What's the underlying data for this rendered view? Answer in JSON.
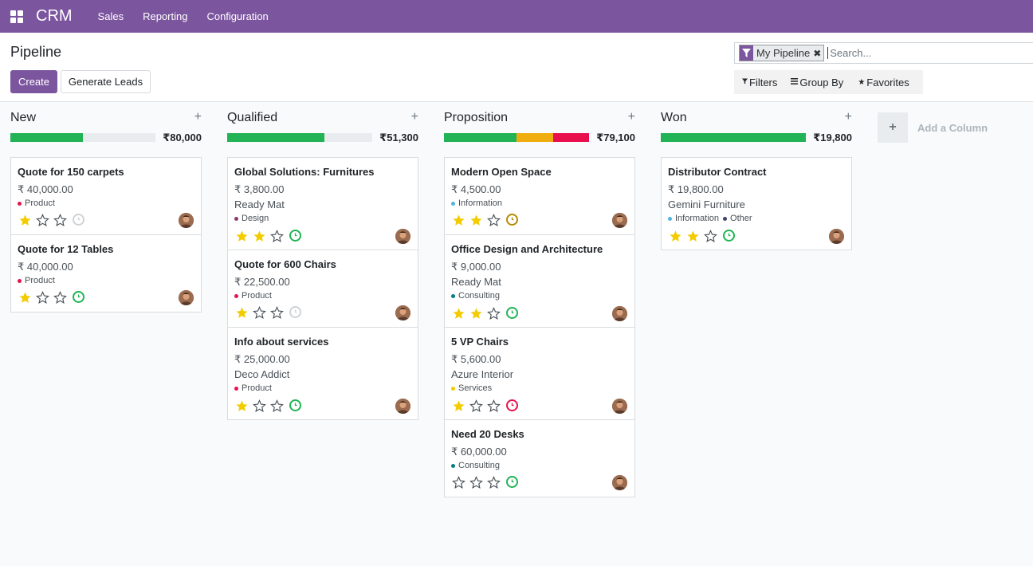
{
  "navbar": {
    "brand": "CRM",
    "menu": [
      "Sales",
      "Reporting",
      "Configuration"
    ]
  },
  "control_panel": {
    "title": "Pipeline",
    "create_label": "Create",
    "generate_label": "Generate Leads",
    "search": {
      "facet": "My Pipeline",
      "placeholder": "Search..."
    },
    "filters_label": "Filters",
    "groupby_label": "Group By",
    "favorites_label": "Favorites"
  },
  "add_column_label": "Add a Column",
  "colors": {
    "brand": "#7c559f",
    "progress_green": "#21b356",
    "progress_orange": "#f0ad0f",
    "progress_red": "#e8114d",
    "star": "#f3cc00"
  },
  "columns": [
    {
      "title": "New",
      "total": "₹80,000",
      "progress": [
        {
          "color": "#21b356",
          "fraction": 0.5
        }
      ],
      "cards": [
        {
          "title": "Quote for 150 carpets",
          "amount": "₹ 40,000.00",
          "partner": "",
          "tags": [
            {
              "label": "Product",
              "color": "#e8114d"
            }
          ],
          "stars": 1,
          "activity": "none"
        },
        {
          "title": "Quote for 12 Tables",
          "amount": "₹ 40,000.00",
          "partner": "",
          "tags": [
            {
              "label": "Product",
              "color": "#e8114d"
            }
          ],
          "stars": 1,
          "activity": "planned"
        }
      ]
    },
    {
      "title": "Qualified",
      "total": "₹51,300",
      "progress": [
        {
          "color": "#21b356",
          "fraction": 0.67
        }
      ],
      "cards": [
        {
          "title": "Global Solutions: Furnitures",
          "amount": "₹ 3,800.00",
          "partner": "Ready Mat",
          "tags": [
            {
              "label": "Design",
              "color": "#8b3d6c"
            }
          ],
          "stars": 2,
          "activity": "planned"
        },
        {
          "title": "Quote for 600 Chairs",
          "amount": "₹ 22,500.00",
          "partner": "",
          "tags": [
            {
              "label": "Product",
              "color": "#e8114d"
            }
          ],
          "stars": 1,
          "activity": "none"
        },
        {
          "title": "Info about services",
          "amount": "₹ 25,000.00",
          "partner": "Deco Addict",
          "tags": [
            {
              "label": "Product",
              "color": "#e8114d"
            }
          ],
          "stars": 1,
          "activity": "planned"
        }
      ]
    },
    {
      "title": "Proposition",
      "total": "₹79,100",
      "progress": [
        {
          "color": "#21b356",
          "fraction": 0.5
        },
        {
          "color": "#f0ad0f",
          "fraction": 0.25
        },
        {
          "color": "#e8114d",
          "fraction": 0.25
        }
      ],
      "cards": [
        {
          "title": "Modern Open Space",
          "amount": "₹ 4,500.00",
          "partner": "",
          "tags": [
            {
              "label": "Information",
              "color": "#4fb4e0"
            }
          ],
          "stars": 2,
          "activity": "today"
        },
        {
          "title": "Office Design and Architecture",
          "amount": "₹ 9,000.00",
          "partner": "Ready Mat",
          "tags": [
            {
              "label": "Consulting",
              "color": "#017e84"
            }
          ],
          "stars": 2,
          "activity": "planned"
        },
        {
          "title": "5 VP Chairs",
          "amount": "₹ 5,600.00",
          "partner": "Azure Interior",
          "tags": [
            {
              "label": "Services",
              "color": "#f3cc00"
            }
          ],
          "stars": 1,
          "activity": "overdue"
        },
        {
          "title": "Need 20 Desks",
          "amount": "₹ 60,000.00",
          "partner": "",
          "tags": [
            {
              "label": "Consulting",
              "color": "#017e84"
            }
          ],
          "stars": 0,
          "activity": "planned"
        }
      ]
    },
    {
      "title": "Won",
      "total": "₹19,800",
      "progress": [
        {
          "color": "#21b356",
          "fraction": 1.0
        }
      ],
      "cards": [
        {
          "title": "Distributor Contract",
          "amount": "₹ 19,800.00",
          "partner": "Gemini Furniture",
          "tags": [
            {
              "label": "Information",
              "color": "#4fb4e0"
            },
            {
              "label": "Other",
              "color": "#3c4570"
            }
          ],
          "stars": 2,
          "activity": "planned"
        }
      ]
    }
  ]
}
